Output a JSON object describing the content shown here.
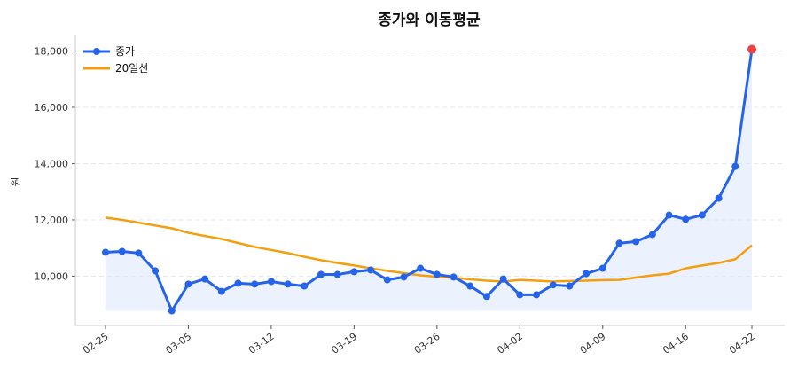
{
  "chart_data": {
    "type": "line",
    "title": "종가와 이동평균",
    "ylabel": "원",
    "xlabel": "",
    "ylim": [
      8250,
      18550
    ],
    "yticks": [
      10000,
      12000,
      14000,
      16000,
      18000
    ],
    "ytick_labels": [
      "10,000",
      "12,000",
      "14,000",
      "16,000",
      "18,000"
    ],
    "grid": true,
    "legend": "top-left",
    "x": [
      "02-25",
      "02-26",
      "02-27",
      "02-28",
      "03-04",
      "03-05",
      "03-06",
      "03-07",
      "03-10",
      "03-11",
      "03-12",
      "03-13",
      "03-14",
      "03-17",
      "03-18",
      "03-19",
      "03-20",
      "03-21",
      "03-24",
      "03-25",
      "03-26",
      "03-27",
      "03-28",
      "03-31",
      "04-01",
      "04-02",
      "04-03",
      "04-04",
      "04-07",
      "04-08",
      "04-09",
      "04-10",
      "04-11",
      "04-14",
      "04-15",
      "04-16",
      "04-17",
      "04-18",
      "04-21",
      "04-22"
    ],
    "xticks": [
      "02-25",
      "03-05",
      "03-12",
      "03-19",
      "03-26",
      "04-02",
      "04-09",
      "04-16",
      "04-22"
    ],
    "series": [
      {
        "name": "종가",
        "color": "#2563eb",
        "values": [
          10850,
          10880,
          10820,
          10190,
          8770,
          9720,
          9900,
          9460,
          9750,
          9720,
          9810,
          9720,
          9650,
          10060,
          10060,
          10160,
          10220,
          9870,
          9970,
          10280,
          10060,
          9970,
          9650,
          9280,
          9900,
          9340,
          9340,
          9690,
          9650,
          10090,
          10280,
          11170,
          11230,
          11480,
          12170,
          12020,
          12170,
          12770,
          13900,
          18060
        ]
      },
      {
        "name": "20일선",
        "color": "#f59e0b",
        "values": [
          12080,
          12000,
          11900,
          11800,
          11700,
          11540,
          11430,
          11320,
          11180,
          11040,
          10930,
          10820,
          10690,
          10570,
          10470,
          10380,
          10280,
          10190,
          10110,
          10030,
          9980,
          9940,
          9890,
          9840,
          9810,
          9870,
          9840,
          9810,
          9830,
          9840,
          9860,
          9870,
          9950,
          10030,
          10090,
          10280,
          10380,
          10470,
          10600,
          11100
        ]
      }
    ],
    "highlight_last_color": "#ef4444",
    "fill_color": "#dbe6fb"
  }
}
